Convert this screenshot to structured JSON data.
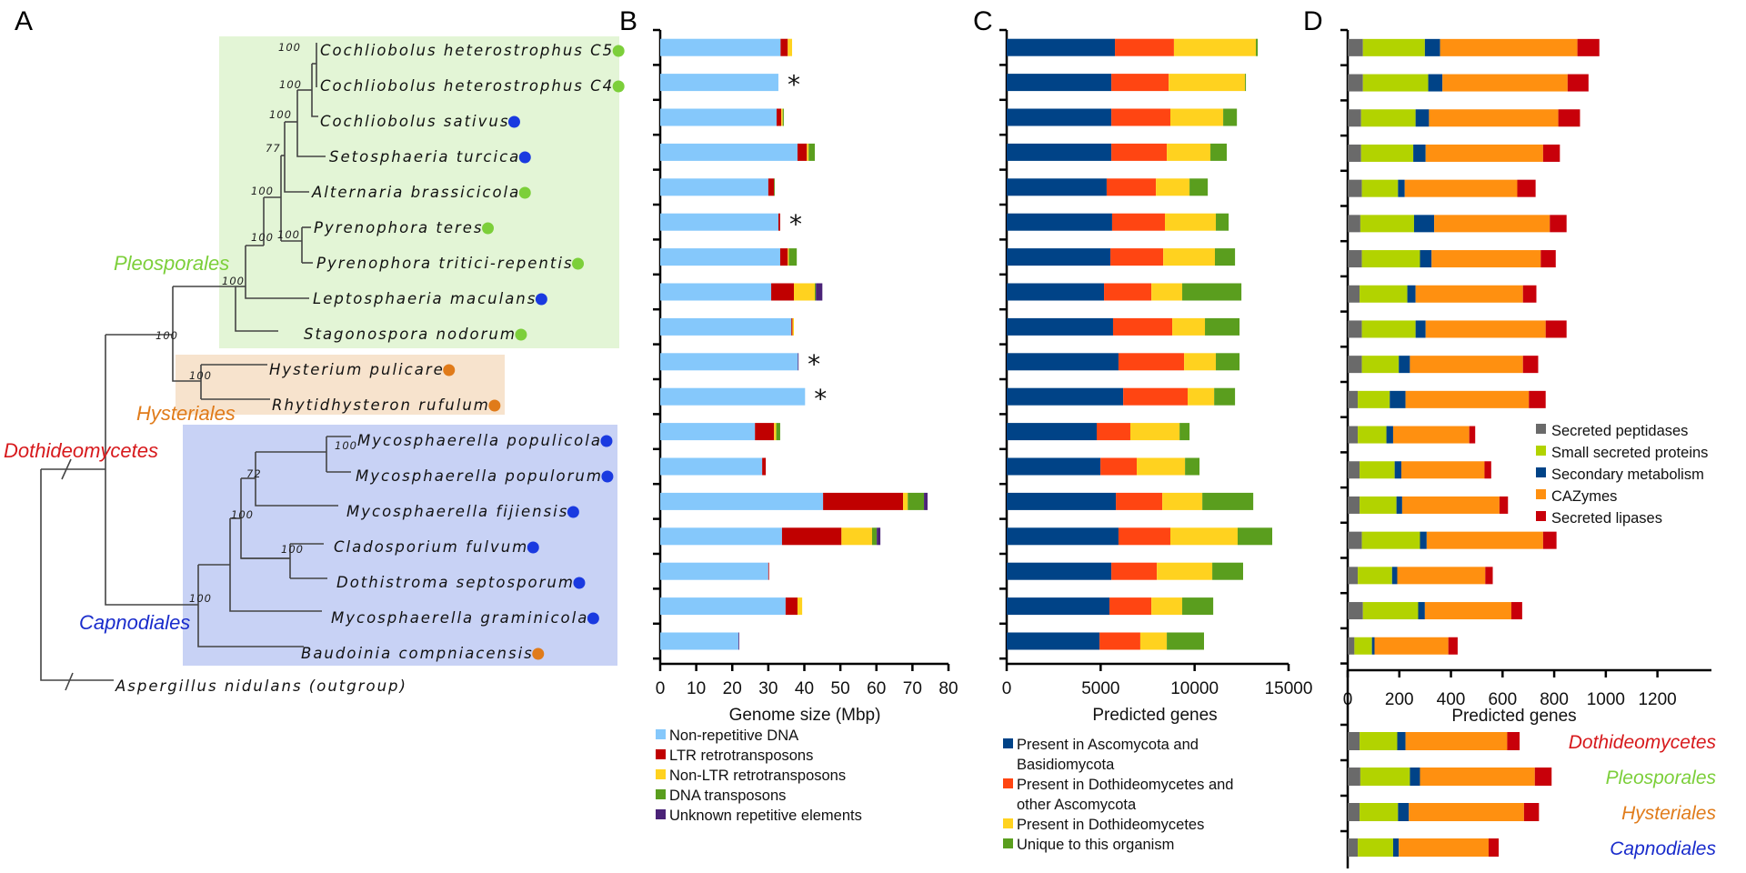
{
  "panels": {
    "a": "A",
    "b": "B",
    "c": "C",
    "d": "D"
  },
  "tree": {
    "clades": [
      {
        "name": "Pleosporales",
        "color": "#7ccf3a",
        "box_color": "#e3f5d6"
      },
      {
        "name": "Hysteriales",
        "color": "#e07b1a",
        "box_color": "#f7e3cd"
      },
      {
        "name": "Capnodiales",
        "color": "#1a2ccc",
        "box_color": "#c8d2f5"
      },
      {
        "name": "Dothideomycetes",
        "color": "#d7191c"
      }
    ],
    "lifestyle_colors": {
      "green": "#7ccf3a",
      "blue": "#1a3ae0",
      "orange": "#e07b1a"
    },
    "species": [
      {
        "name": "Cochliobolus heterostrophus C5",
        "dot": "green"
      },
      {
        "name": "Cochliobolus heterostrophus C4",
        "dot": "green"
      },
      {
        "name": "Cochliobolus sativus",
        "dot": "blue"
      },
      {
        "name": "Setosphaeria turcica",
        "dot": "blue"
      },
      {
        "name": "Alternaria brassicicola",
        "dot": "green"
      },
      {
        "name": "Pyrenophora teres",
        "dot": "green"
      },
      {
        "name": "Pyrenophora tritici-repentis",
        "dot": "green"
      },
      {
        "name": "Leptosphaeria maculans",
        "dot": "blue"
      },
      {
        "name": "Stagonospora nodorum",
        "dot": "green"
      },
      {
        "name": "Hysterium pulicare",
        "dot": "orange"
      },
      {
        "name": "Rhytidhysteron rufulum",
        "dot": "orange"
      },
      {
        "name": "Mycosphaerella populicola",
        "dot": "blue"
      },
      {
        "name": "Mycosphaerella populorum",
        "dot": "blue"
      },
      {
        "name": "Mycosphaerella fijiensis",
        "dot": "blue"
      },
      {
        "name": "Cladosporium fulvum",
        "dot": "blue"
      },
      {
        "name": "Dothistroma septosporum",
        "dot": "blue"
      },
      {
        "name": "Mycosphaerella graminicola",
        "dot": "blue"
      },
      {
        "name": "Baudoinia compniacensis",
        "dot": "orange"
      }
    ],
    "outgroup": "Aspergillus nidulans (outgroup)",
    "bootstrap": [
      "100",
      "100",
      "100",
      "77",
      "100",
      "100",
      "100",
      "100",
      "100",
      "100",
      "100",
      "72",
      "100",
      "100",
      "100"
    ]
  },
  "chart_data": [
    {
      "id": "B",
      "type": "bar",
      "orientation": "horizontal",
      "stacked": true,
      "title": "",
      "xlabel": "Genome size (Mbp)",
      "ylabel": "",
      "xlim": [
        0,
        80
      ],
      "xticks": [
        "0",
        "10",
        "20",
        "30",
        "40",
        "50",
        "60",
        "70",
        "80"
      ],
      "categories": [
        "Cochliobolus heterostrophus C5",
        "Cochliobolus heterostrophus C4",
        "Cochliobolus sativus",
        "Setosphaeria turcica",
        "Alternaria brassicicola",
        "Pyrenophora teres",
        "Pyrenophora tritici-repentis",
        "Leptosphaeria maculans",
        "Stagonospora nodorum",
        "Hysterium pulicare",
        "Rhytidhysteron rufulum",
        "Mycosphaerella populicola",
        "Mycosphaerella populorum",
        "Mycosphaerella fijiensis",
        "Cladosporium fulvum",
        "Dothistroma septosporum",
        "Mycosphaerella graminicola",
        "Baudoinia compniacensis"
      ],
      "annotations": {
        "asterisk_rows": [
          1,
          5,
          9,
          10
        ],
        "symbol": "*"
      },
      "series": [
        {
          "name": "Non-repetitive DNA",
          "color": "#85c8fb",
          "values": [
            33.4,
            32.8,
            32.3,
            38.1,
            30.0,
            32.8,
            33.3,
            30.8,
            36.4,
            38.2,
            40.2,
            26.3,
            28.3,
            45.2,
            33.8,
            30.0,
            34.8,
            21.7
          ]
        },
        {
          "name": "LTR retrotransposons",
          "color": "#c00000",
          "values": [
            2.0,
            0,
            1.3,
            2.6,
            1.6,
            0.5,
            2.1,
            6.3,
            0.3,
            0,
            0,
            5.3,
            1.0,
            22.2,
            16.5,
            0.2,
            3.3,
            0
          ]
        },
        {
          "name": "Non-LTR retrotransposons",
          "color": "#ffd21f",
          "values": [
            1.2,
            0,
            0.4,
            0.5,
            0,
            0,
            0.3,
            5.8,
            0.4,
            0,
            0,
            0.6,
            0,
            1.3,
            8.5,
            0,
            1.3,
            0
          ]
        },
        {
          "name": "DNA transposons",
          "color": "#5a9e1e",
          "values": [
            0,
            0,
            0.3,
            1.7,
            0.2,
            0,
            2.2,
            0.3,
            0,
            0,
            0,
            1.1,
            0,
            4.5,
            1.3,
            0,
            0,
            0
          ]
        },
        {
          "name": "Unknown repetitive elements",
          "color": "#4b2378",
          "values": [
            0,
            0,
            0,
            0,
            0,
            0,
            0,
            1.8,
            0,
            0.2,
            0,
            0,
            0,
            1.0,
            1.0,
            0,
            0,
            0.1
          ]
        }
      ]
    },
    {
      "id": "C",
      "type": "bar",
      "orientation": "horizontal",
      "stacked": true,
      "title": "",
      "xlabel": "Predicted genes",
      "ylabel": "",
      "xlim": [
        0,
        15000
      ],
      "xticks": [
        "0",
        "5000",
        "10000",
        "15000"
      ],
      "categories": [
        "Cochliobolus heterostrophus C5",
        "Cochliobolus heterostrophus C4",
        "Cochliobolus sativus",
        "Setosphaeria turcica",
        "Alternaria brassicicola",
        "Pyrenophora teres",
        "Pyrenophora tritici-repentis",
        "Leptosphaeria maculans",
        "Stagonospora nodorum",
        "Hysterium pulicare",
        "Rhytidhysteron rufulum",
        "Mycosphaerella populicola",
        "Mycosphaerella populorum",
        "Mycosphaerella fijiensis",
        "Cladosporium fulvum",
        "Dothistroma septosporum",
        "Mycosphaerella graminicola",
        "Baudoinia compniacensis"
      ],
      "series": [
        {
          "name": "Present in Ascomycota and Basidiomycota",
          "color": "#004387",
          "values": [
            5760,
            5570,
            5570,
            5570,
            5320,
            5610,
            5520,
            5180,
            5660,
            5950,
            6200,
            4790,
            4990,
            5810,
            5950,
            5570,
            5470,
            4940
          ]
        },
        {
          "name": "Present in Dothideomycetes and other Ascomycota",
          "color": "#ff4512",
          "values": [
            3140,
            3050,
            3140,
            2950,
            2620,
            2810,
            2810,
            2520,
            3150,
            3490,
            3430,
            1790,
            1930,
            2470,
            2760,
            2420,
            2230,
            2170
          ]
        },
        {
          "name": "Present in Dothideomycetes",
          "color": "#ffd21f",
          "values": [
            4360,
            4060,
            2810,
            2320,
            1790,
            2710,
            2750,
            1640,
            1740,
            1690,
            1410,
            2620,
            2570,
            2130,
            3580,
            2950,
            1640,
            1410
          ]
        },
        {
          "name": "Unique to this organism",
          "color": "#5a9e1e",
          "values": [
            100,
            50,
            730,
            870,
            970,
            680,
            1070,
            3150,
            1840,
            1260,
            1110,
            530,
            770,
            2710,
            1840,
            1640,
            1650,
            1980
          ]
        }
      ]
    },
    {
      "id": "D",
      "type": "bar",
      "orientation": "horizontal",
      "stacked": true,
      "title": "",
      "xlabel": "Predicted genes",
      "ylabel": "",
      "xlim": [
        0,
        1300
      ],
      "xticks": [
        "0",
        "200",
        "400",
        "600",
        "800",
        "1000",
        "1200"
      ],
      "categories": [
        "Cochliobolus heterostrophus C5",
        "Cochliobolus heterostrophus C4",
        "Cochliobolus sativus",
        "Setosphaeria turcica",
        "Alternaria brassicicola",
        "Pyrenophora teres",
        "Pyrenophora tritici-repentis",
        "Leptosphaeria maculans",
        "Stagonospora nodorum",
        "Hysterium pulicare",
        "Rhytidhysteron rufulum",
        "Mycosphaerella populicola",
        "Mycosphaerella populorum",
        "Mycosphaerella fijiensis",
        "Cladosporium fulvum",
        "Dothistroma septosporum",
        "Mycosphaerella graminicola",
        "Baudoinia compniacensis"
      ],
      "group_categories": [
        {
          "name": "Dothideomycetes",
          "color": "#d7191c"
        },
        {
          "name": "Pleosporales",
          "color": "#7ccf3a"
        },
        {
          "name": "Hysteriales",
          "color": "#e07b1a"
        },
        {
          "name": "Capnodiales",
          "color": "#1a2ccc"
        }
      ],
      "legend_position": "right-middle",
      "series": [
        {
          "name": "Secreted peptidases",
          "color": "#6a6a6a",
          "values": [
            59,
            59,
            52,
            52,
            55,
            49,
            55,
            46,
            55,
            55,
            39,
            39,
            46,
            46,
            55,
            39,
            59,
            26
          ],
          "group_values": [
            46,
            49,
            46,
            39
          ]
        },
        {
          "name": "Small secreted proteins",
          "color": "#b2d300",
          "values": [
            240,
            253,
            211,
            202,
            140,
            208,
            225,
            185,
            208,
            143,
            124,
            111,
            136,
            143,
            225,
            133,
            214,
            68
          ],
          "group_values": [
            146,
            192,
            149,
            137
          ]
        },
        {
          "name": "Secondary metabolism",
          "color": "#004387",
          "values": [
            59,
            55,
            52,
            48,
            26,
            78,
            45,
            32,
            39,
            43,
            61,
            26,
            26,
            22,
            26,
            20,
            26,
            10
          ],
          "group_values": [
            32,
            39,
            42,
            22
          ]
        },
        {
          "name": "CAZymes",
          "color": "#ff9010",
          "values": [
            532,
            485,
            501,
            455,
            436,
            448,
            423,
            416,
            465,
            438,
            478,
            295,
            322,
            377,
            451,
            341,
            335,
            286
          ],
          "group_values": [
            394,
            445,
            446,
            348
          ]
        },
        {
          "name": "Secreted lipases",
          "color": "#c8000a",
          "values": [
            85,
            81,
            84,
            65,
            71,
            65,
            58,
            52,
            81,
            59,
            65,
            23,
            26,
            33,
            52,
            29,
            42,
            36
          ],
          "group_values": [
            48,
            65,
            58,
            39
          ]
        }
      ]
    }
  ]
}
